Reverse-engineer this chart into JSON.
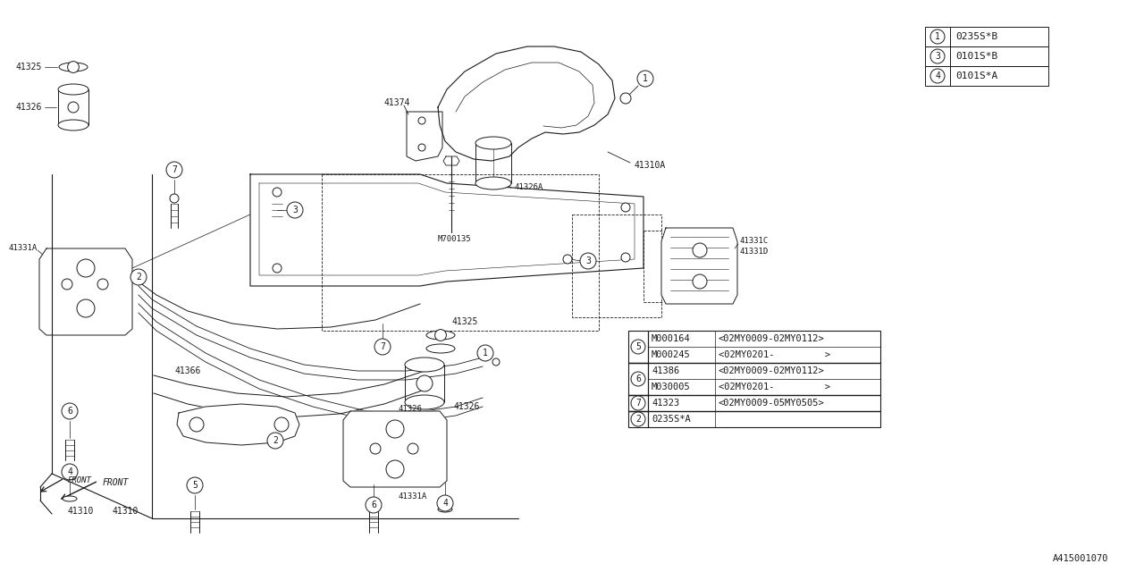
{
  "bg_color": "#ffffff",
  "line_color": "#1a1a1a",
  "diagram_id": "A415001070",
  "top_legend": [
    {
      "num": "1",
      "code": "0235S*B"
    },
    {
      "num": "3",
      "code": "0101S*B"
    },
    {
      "num": "4",
      "code": "0101S*A"
    }
  ],
  "bottom_legend_rows": [
    {
      "num": "5",
      "span": 2,
      "p1": "M000164",
      "p2": "<02MY0009-02MY0112>"
    },
    {
      "num": "",
      "span": 0,
      "p1": "M000245",
      "p2": "<02MY0201-         >"
    },
    {
      "num": "6",
      "span": 2,
      "p1": "41386",
      "p2": "<02MY0009-02MY0112>"
    },
    {
      "num": "",
      "span": 0,
      "p1": "M030005",
      "p2": "<02MY0201-         >"
    },
    {
      "num": "7",
      "span": 1,
      "p1": "41323",
      "p2": "<02MY0009-05MY0505>"
    },
    {
      "num": "2",
      "span": 1,
      "p1": "0235S*A",
      "p2": ""
    }
  ]
}
